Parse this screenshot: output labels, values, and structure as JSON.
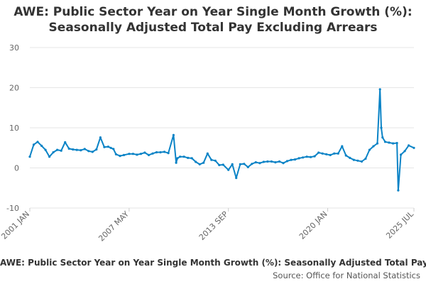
{
  "title_line1": "AWE: Public Sector Year on Year Single Month Growth (%):",
  "title_line2": "Seasonally Adjusted Total Pay Excluding Arrears",
  "legend_label": "AWE: Public Sector Year on Year Single Month Growth (%): Seasonally Adjusted Total Pay Excluding Arrears",
  "source_label": "Source: Office for National Statistics",
  "colors": {
    "series": "#0a83c6",
    "grid": "#e6e6e6",
    "axis_text": "#666666"
  },
  "chart_data": {
    "type": "line",
    "title": "AWE: Public Sector Year on Year Single Month Growth (%): Seasonally Adjusted Total Pay Excluding Arrears",
    "xlabel": "",
    "ylabel": "",
    "ylim": [
      -10,
      30
    ],
    "yticks": [
      -10,
      0,
      10,
      20,
      30
    ],
    "xtick_labels": [
      "2001 JAN",
      "2007 MAY",
      "2013 SEP",
      "2020 JAN",
      "2025 JUL"
    ],
    "grid": "horizontal",
    "legend": "bottom",
    "series": [
      {
        "name": "AWE: Public Sector Year on Year Single Month Growth (%): Seasonally Adjusted Total Pay Excluding Arrears",
        "x": [
          "2001 JAN",
          "2001 APR",
          "2001 JUL",
          "2001 OCT",
          "2002 JAN",
          "2002 APR",
          "2002 JUL",
          "2002 OCT",
          "2003 JAN",
          "2003 APR",
          "2003 JUL",
          "2003 OCT",
          "2004 JAN",
          "2004 APR",
          "2004 JUL",
          "2004 OCT",
          "2005 JAN",
          "2005 APR",
          "2005 JUL",
          "2005 OCT",
          "2006 JAN",
          "2006 MAR",
          "2006 MAY",
          "2006 JUL",
          "2006 OCT",
          "2007 JAN",
          "2007 MAY",
          "2007 AUG",
          "2007 NOV",
          "2008 FEB",
          "2008 MAY",
          "2008 AUG",
          "2008 NOV",
          "2009 FEB",
          "2009 MAY",
          "2009 AUG",
          "2009 NOV",
          "2010 MAR",
          "2010 MAY",
          "2010 JUN",
          "2010 AUG",
          "2010 NOV",
          "2011 FEB",
          "2011 MAY",
          "2011 AUG",
          "2011 NOV",
          "2012 FEB",
          "2012 MAY",
          "2012 AUG",
          "2012 NOV",
          "2013 FEB",
          "2013 MAY",
          "2013 SEP",
          "2013 DEC",
          "2014 MAR",
          "2014 JUN",
          "2014 SEP",
          "2014 DEC",
          "2015 MAR",
          "2015 JUN",
          "2015 SEP",
          "2015 DEC",
          "2016 MAR",
          "2016 JUN",
          "2016 SEP",
          "2016 DEC",
          "2017 MAR",
          "2017 JUN",
          "2017 SEP",
          "2017 DEC",
          "2018 MAR",
          "2018 JUN",
          "2018 SEP",
          "2018 DEC",
          "2019 MAR",
          "2019 JUN",
          "2019 SEP",
          "2019 DEC",
          "2020 MAR",
          "2020 JUN",
          "2020 SEP",
          "2020 DEC",
          "2021 MAR",
          "2021 JUN",
          "2021 SEP",
          "2021 DEC",
          "2022 MAR",
          "2022 JUN",
          "2022 SEP",
          "2022 DEC",
          "2023 MAR",
          "2023 MAY",
          "2023 JUN",
          "2023 JUL",
          "2023 SEP",
          "2023 DEC",
          "2024 MAR",
          "2024 JUN",
          "2024 JUL",
          "2024 SEP",
          "2024 DEC",
          "2025 MAR",
          "2025 JUL"
        ],
        "values": [
          2.8,
          5.8,
          6.5,
          5.5,
          4.5,
          2.8,
          3.9,
          4.5,
          4.3,
          6.4,
          4.8,
          4.6,
          4.5,
          4.4,
          4.7,
          4.2,
          4.0,
          4.6,
          7.6,
          5.2,
          5.3,
          5.0,
          4.7,
          3.4,
          3.0,
          3.2,
          3.5,
          3.5,
          3.3,
          3.5,
          3.8,
          3.2,
          3.6,
          3.9,
          3.9,
          4.0,
          3.7,
          8.2,
          1.3,
          2.4,
          2.8,
          2.8,
          2.5,
          2.4,
          1.5,
          0.9,
          1.3,
          3.6,
          2.0,
          1.8,
          0.7,
          0.8,
          -0.5,
          0.9,
          -2.5,
          0.9,
          1.0,
          0.2,
          1.0,
          1.4,
          1.2,
          1.5,
          1.6,
          1.6,
          1.4,
          1.6,
          1.2,
          1.7,
          2.0,
          2.1,
          2.4,
          2.6,
          2.8,
          2.7,
          2.9,
          3.8,
          3.6,
          3.4,
          3.2,
          3.6,
          3.6,
          5.4,
          3.1,
          2.5,
          2.0,
          1.8,
          1.6,
          2.3,
          4.5,
          5.4,
          6.1,
          19.6,
          10.0,
          7.6,
          6.5,
          6.3,
          6.1,
          6.2,
          -5.6,
          3.3,
          4.2,
          5.6,
          5.0
        ]
      }
    ]
  }
}
